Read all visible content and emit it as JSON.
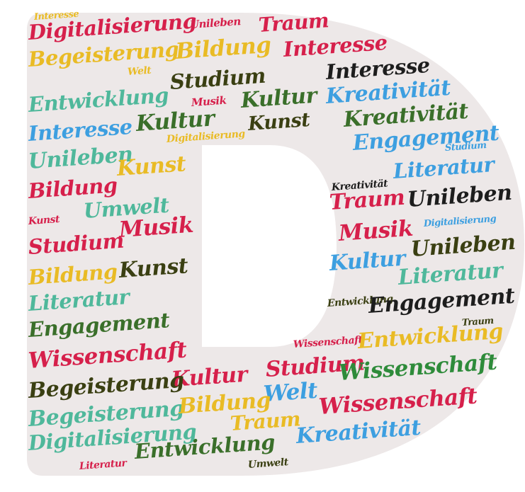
{
  "colors": {
    "shape": "#ede8e8",
    "background": "#ffffff",
    "red": "#d6204b",
    "yellow": "#e9bb25",
    "teal": "#4fb89b",
    "blue": "#3d9fe0",
    "darkgreen": "#3a6f2a",
    "olive": "#3a3f12",
    "black": "#1d1d1d",
    "green": "#2e8b3a"
  },
  "words": [
    {
      "text": "Interesse",
      "color": "yellow"
    },
    {
      "text": "Digitalisierung",
      "color": "red"
    },
    {
      "text": "Unileben",
      "color": "red"
    },
    {
      "text": "Traum",
      "color": "red"
    },
    {
      "text": "Begeisterung",
      "color": "yellow"
    },
    {
      "text": "Bildung",
      "color": "yellow"
    },
    {
      "text": "Interesse",
      "color": "red"
    },
    {
      "text": "Welt",
      "color": "yellow"
    },
    {
      "text": "Interesse",
      "color": "black"
    },
    {
      "text": "Entwicklung",
      "color": "teal"
    },
    {
      "text": "Studium",
      "color": "olive"
    },
    {
      "text": "Kultur",
      "color": "darkgreen"
    },
    {
      "text": "Kreativität",
      "color": "blue"
    },
    {
      "text": "Musik",
      "color": "red"
    },
    {
      "text": "Interesse",
      "color": "blue"
    },
    {
      "text": "Kultur",
      "color": "darkgreen"
    },
    {
      "text": "Kunst",
      "color": "olive"
    },
    {
      "text": "Kreativität",
      "color": "darkgreen"
    },
    {
      "text": "Digitalisierung",
      "color": "yellow"
    },
    {
      "text": "Engagement",
      "color": "blue"
    },
    {
      "text": "Studium",
      "color": "blue"
    },
    {
      "text": "Unileben",
      "color": "teal"
    },
    {
      "text": "Kunst",
      "color": "yellow"
    },
    {
      "text": "Kreativität",
      "color": "black"
    },
    {
      "text": "Literatur",
      "color": "blue"
    },
    {
      "text": "Bildung",
      "color": "red"
    },
    {
      "text": "Traum",
      "color": "red"
    },
    {
      "text": "Unileben",
      "color": "black"
    },
    {
      "text": "Umwelt",
      "color": "teal"
    },
    {
      "text": "Kunst",
      "color": "red"
    },
    {
      "text": "Digitalisierung",
      "color": "blue"
    },
    {
      "text": "Musik",
      "color": "red"
    },
    {
      "text": "Studium",
      "color": "red"
    },
    {
      "text": "Musik",
      "color": "red"
    },
    {
      "text": "Unileben",
      "color": "olive"
    },
    {
      "text": "Bildung",
      "color": "yellow"
    },
    {
      "text": "Kunst",
      "color": "olive"
    },
    {
      "text": "Kultur",
      "color": "blue"
    },
    {
      "text": "Literatur",
      "color": "teal"
    },
    {
      "text": "Literatur",
      "color": "teal"
    },
    {
      "text": "Entwicklung",
      "color": "olive"
    },
    {
      "text": "Engagement",
      "color": "black"
    },
    {
      "text": "Engagement",
      "color": "darkgreen"
    },
    {
      "text": "Traum",
      "color": "olive"
    },
    {
      "text": "Wissenschaft",
      "color": "red"
    },
    {
      "text": "Entwicklung",
      "color": "yellow"
    },
    {
      "text": "Wissenschaft",
      "color": "red"
    },
    {
      "text": "Studium",
      "color": "red"
    },
    {
      "text": "Wissenschaft",
      "color": "green"
    },
    {
      "text": "Kultur",
      "color": "red"
    },
    {
      "text": "Begeisterung",
      "color": "olive"
    },
    {
      "text": "Welt",
      "color": "blue"
    },
    {
      "text": "Begeisterung",
      "color": "teal"
    },
    {
      "text": "Bildung",
      "color": "yellow"
    },
    {
      "text": "Wissenschaft",
      "color": "red"
    },
    {
      "text": "Traum",
      "color": "yellow"
    },
    {
      "text": "Digitalisierung",
      "color": "teal"
    },
    {
      "text": "Entwicklung",
      "color": "darkgreen"
    },
    {
      "text": "Kreativität",
      "color": "blue"
    },
    {
      "text": "Literatur",
      "color": "red"
    },
    {
      "text": "Umwelt",
      "color": "olive"
    }
  ]
}
